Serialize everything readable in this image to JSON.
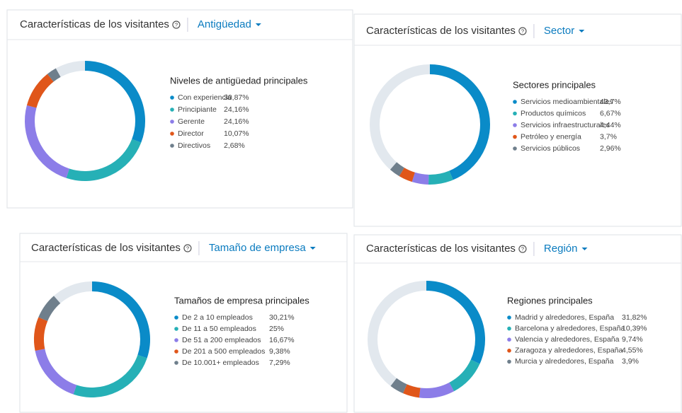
{
  "chart_data": [
    {
      "type": "donut",
      "title": "Características de los visitantes",
      "dropdown": "Antigüedad",
      "subtitle": "Niveles de antigüedad principales",
      "categories": [
        "Con experiencia",
        "Principiante",
        "Gerente",
        "Director",
        "Directivos"
      ],
      "values": [
        30.87,
        24.16,
        24.16,
        10.07,
        2.68
      ],
      "value_labels": [
        "30,87%",
        "24,16%",
        "24,16%",
        "10,07%",
        "2,68%"
      ],
      "colors": [
        "#0a8bc8",
        "#26b0b6",
        "#8c7de8",
        "#e0561a",
        "#6f7f8c"
      ]
    },
    {
      "type": "donut",
      "title": "Características de los visitantes",
      "dropdown": "Sector",
      "subtitle": "Sectores principales",
      "categories": [
        "Servicios medioambientales",
        "Productos químicos",
        "Servicios infraestructurales",
        "Petróleo y energía",
        "Servicios públicos"
      ],
      "values": [
        43.7,
        6.67,
        4.44,
        3.7,
        2.96
      ],
      "value_labels": [
        "43,7%",
        "6,67%",
        "4,44%",
        "3,7%",
        "2,96%"
      ],
      "colors": [
        "#0a8bc8",
        "#26b0b6",
        "#8c7de8",
        "#e0561a",
        "#6f7f8c"
      ]
    },
    {
      "type": "donut",
      "title": "Características de los visitantes",
      "dropdown": "Tamaño de empresa",
      "subtitle": "Tamaños de empresa principales",
      "categories": [
        "De 2 a 10 empleados",
        "De 11 a 50 empleados",
        "De 51 a 200 empleados",
        "De 201 a 500 empleados",
        "De 10.001+ empleados"
      ],
      "values": [
        30.21,
        25,
        16.67,
        9.38,
        7.29
      ],
      "value_labels": [
        "30,21%",
        "25%",
        "16,67%",
        "9,38%",
        "7,29%"
      ],
      "colors": [
        "#0a8bc8",
        "#26b0b6",
        "#8c7de8",
        "#e0561a",
        "#6f7f8c"
      ]
    },
    {
      "type": "donut",
      "title": "Características de los visitantes",
      "dropdown": "Región",
      "subtitle": "Regiones principales",
      "categories": [
        "Madrid y alrededores, España",
        "Barcelona y alrededores, España",
        "Valencia y alrededores, España",
        "Zaragoza y alrededores, España",
        "Murcia y alrededores, España"
      ],
      "values": [
        31.82,
        10.39,
        9.74,
        4.55,
        3.9
      ],
      "value_labels": [
        "31,82%",
        "10,39%",
        "9,74%",
        "4,55%",
        "3,9%"
      ],
      "colors": [
        "#0a8bc8",
        "#26b0b6",
        "#8c7de8",
        "#e0561a",
        "#6f7f8c"
      ]
    }
  ]
}
